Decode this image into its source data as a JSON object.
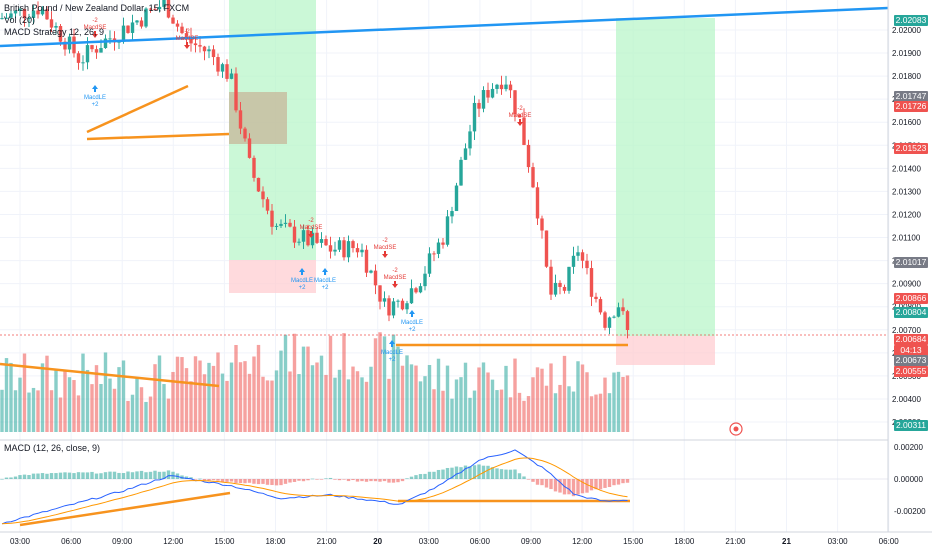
{
  "legend": {
    "symbol_line": "British Pound / New Zealand Dollar, 15, FXCM",
    "vol_label": "Vol (20)",
    "strategy_label": "MACD Strategy 12, 26, 9",
    "macd_label": "MACD (12, 26, close, 9)"
  },
  "price_axis": {
    "ticks": [
      "2.02000",
      "2.01900",
      "2.01800",
      "2.01700",
      "2.01600",
      "2.01500",
      "2.01400",
      "2.01300",
      "2.01200",
      "2.01100",
      "2.01000",
      "2.00900",
      "2.00800",
      "2.00700",
      "2.00600",
      "2.00500",
      "2.00400",
      "2.00300"
    ],
    "labels": [
      {
        "text": "2.02083",
        "color": "#26a69a"
      },
      {
        "text": "2.01747",
        "color": "#787b86"
      },
      {
        "text": "2.01726",
        "color": "#ef5350"
      },
      {
        "text": "2.01523",
        "color": "#ef5350"
      },
      {
        "text": "2.01017",
        "color": "#787b86"
      },
      {
        "text": "2.00866",
        "color": "#ef5350"
      },
      {
        "text": "2.00804",
        "color": "#26a69a"
      },
      {
        "text": "2.00684",
        "color": "#ef5350"
      },
      {
        "text": "04:13",
        "color": "#ef5350"
      },
      {
        "text": "2.00673",
        "color": "#787b86"
      },
      {
        "text": "2.00555",
        "color": "#ef5350"
      },
      {
        "text": "2.00311",
        "color": "#26a69a"
      }
    ]
  },
  "macd_axis": {
    "ticks": [
      "0.00200",
      "0.00000",
      "-0.00200"
    ]
  },
  "time_axis": {
    "ticks": [
      "03:00",
      "06:00",
      "09:00",
      "12:00",
      "15:00",
      "18:00",
      "21:00",
      "20",
      "03:00",
      "06:00",
      "09:00",
      "12:00",
      "15:00",
      "18:00",
      "21:00",
      "21",
      "03:00",
      "06:00"
    ]
  },
  "signals": {
    "long": {
      "text": "MacdLE",
      "qty": "+2"
    },
    "short": {
      "text": "MacdSE",
      "qty": "-2"
    }
  },
  "colors": {
    "up": "#26a69a",
    "down": "#ef5350",
    "trend": "#f7931e",
    "channel": "#2196f3",
    "profit": "#b9f6ca",
    "loss": "#ffcdd2"
  }
}
